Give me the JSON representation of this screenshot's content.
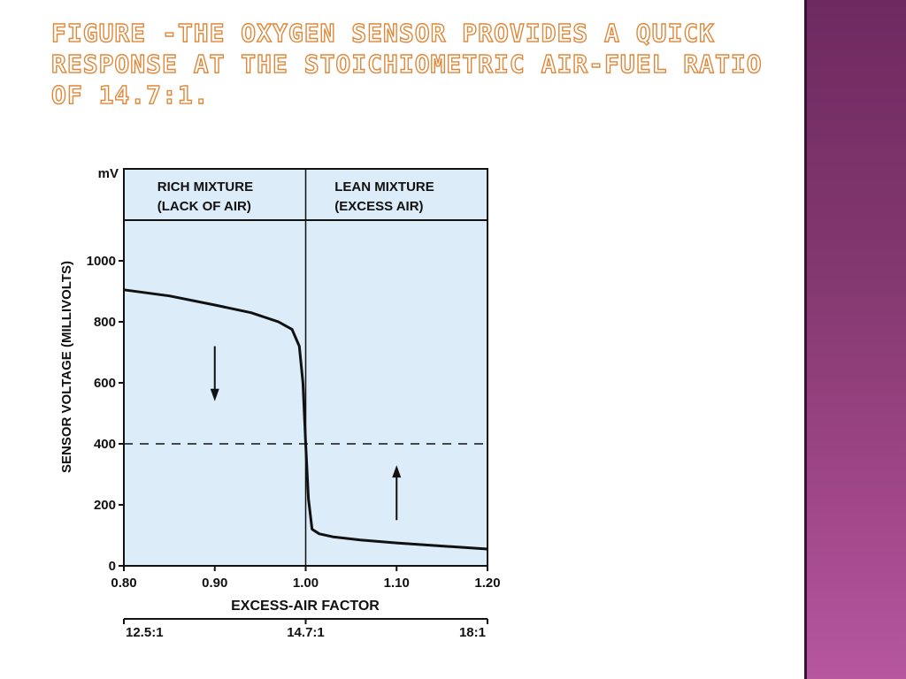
{
  "slide": {
    "title": "Figure -The oxygen sensor provides a quick response at the stoichiometric air-fuel ratio of 14.7:1."
  },
  "colors": {
    "plot_background": "#dcecf8",
    "title_outline": "#e0883a",
    "side_panel": "#8a3a78"
  },
  "chart_data": {
    "type": "line",
    "xlabel": "EXCESS-AIR FACTOR",
    "ylabel": "SENSOR VOLTAGE (MILLIVOLTS)",
    "y_unit": "mV",
    "xlim": [
      0.8,
      1.2
    ],
    "ylim": [
      0,
      1000
    ],
    "x_ticks": [
      "0.80",
      "0.90",
      "1.00",
      "1.10",
      "1.20"
    ],
    "y_ticks": [
      "1000",
      "800",
      "600",
      "400",
      "200",
      "0"
    ],
    "secondary_x_ticks": [
      {
        "x": 0.8,
        "label": "12.5:1"
      },
      {
        "x": 1.0,
        "label": "14.7:1"
      },
      {
        "x": 1.2,
        "label": "18:1"
      }
    ],
    "regions": [
      {
        "line1": "RICH MIXTURE",
        "line2": "(LACK OF AIR)"
      },
      {
        "line1": "LEAN MIXTURE",
        "line2": "(EXCESS AIR)"
      }
    ],
    "reference_line": {
      "y": 400,
      "style": "dashed"
    },
    "divider_x": 1.0,
    "arrows": [
      {
        "x": 0.9,
        "direction": "down",
        "y_from": 720,
        "y_to": 540
      },
      {
        "x": 1.1,
        "direction": "up",
        "y_from": 150,
        "y_to": 330
      }
    ],
    "series": [
      {
        "x": [
          0.8,
          0.85,
          0.9,
          0.94,
          0.97,
          0.985,
          0.993,
          0.997,
          1.0,
          1.003,
          1.007,
          1.015,
          1.03,
          1.06,
          1.1,
          1.15,
          1.2
        ],
        "y": [
          905,
          885,
          855,
          830,
          800,
          775,
          720,
          600,
          400,
          220,
          120,
          105,
          95,
          85,
          75,
          65,
          55
        ]
      }
    ]
  }
}
